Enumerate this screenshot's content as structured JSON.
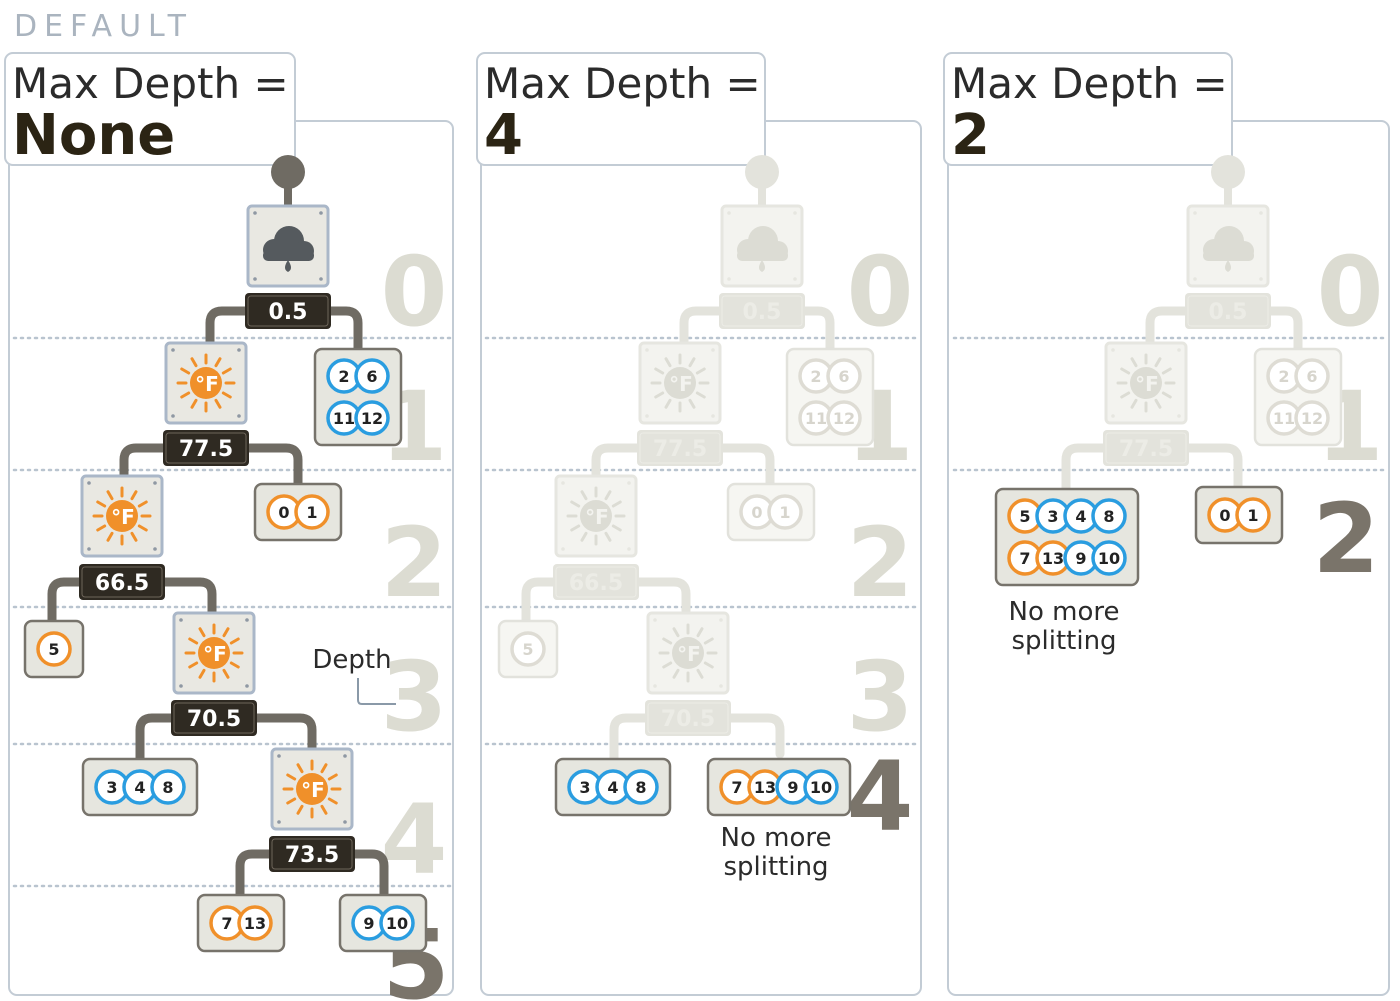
{
  "header": {
    "tag": "DEFAULT"
  },
  "colors": {
    "dark": "#2f2a22",
    "orange": "#f0902a",
    "blue": "#2a9de0",
    "grey_node": "#e6e6df",
    "frame": "#aab7c8",
    "depth_light": "#dcdcd2",
    "depth_dark": "#7a746a",
    "faded": "#e3e3dc"
  },
  "panels": [
    {
      "title_prefix": "Max Depth =",
      "title_value": "None",
      "depth_digits": [
        "0",
        "1",
        "2",
        "3",
        "4",
        "5"
      ],
      "depth_label": "Depth",
      "root_icon": "rain-cloud-icon",
      "splits": [
        {
          "threshold": "0.5",
          "icon": "rain-cloud-icon"
        },
        {
          "threshold": "77.5",
          "icon": "sun-thermometer-icon"
        },
        {
          "threshold": "66.5",
          "icon": "sun-thermometer-icon"
        },
        {
          "threshold": "70.5",
          "icon": "sun-thermometer-icon"
        },
        {
          "threshold": "73.5",
          "icon": "sun-thermometer-icon"
        }
      ],
      "leaves": [
        {
          "items": [
            {
              "id": "2",
              "c": "blue"
            },
            {
              "id": "6",
              "c": "blue"
            },
            {
              "id": "11",
              "c": "blue"
            },
            {
              "id": "12",
              "c": "blue"
            }
          ]
        },
        {
          "items": [
            {
              "id": "0",
              "c": "orange"
            },
            {
              "id": "1",
              "c": "orange"
            }
          ]
        },
        {
          "items": [
            {
              "id": "5",
              "c": "orange"
            }
          ]
        },
        {
          "items": [
            {
              "id": "3",
              "c": "blue"
            },
            {
              "id": "4",
              "c": "blue"
            },
            {
              "id": "8",
              "c": "blue"
            }
          ]
        },
        {
          "items": [
            {
              "id": "7",
              "c": "orange"
            },
            {
              "id": "13",
              "c": "orange"
            }
          ]
        },
        {
          "items": [
            {
              "id": "9",
              "c": "blue"
            },
            {
              "id": "10",
              "c": "blue"
            }
          ]
        }
      ]
    },
    {
      "title_prefix": "Max Depth =",
      "title_value": "4",
      "depth_digits": [
        "0",
        "1",
        "2",
        "3",
        "4"
      ],
      "splits": [
        {
          "threshold": "0.5"
        },
        {
          "threshold": "77.5"
        },
        {
          "threshold": "66.5"
        },
        {
          "threshold": "70.5"
        }
      ],
      "faded_leaves": [
        {
          "items": [
            "2",
            "6",
            "11",
            "12"
          ]
        },
        {
          "items": [
            "0",
            "1"
          ]
        },
        {
          "items": [
            "5"
          ]
        }
      ],
      "leaves": [
        {
          "items": [
            {
              "id": "3",
              "c": "blue"
            },
            {
              "id": "4",
              "c": "blue"
            },
            {
              "id": "8",
              "c": "blue"
            }
          ]
        },
        {
          "items": [
            {
              "id": "7",
              "c": "orange"
            },
            {
              "id": "13",
              "c": "orange"
            },
            {
              "id": "9",
              "c": "blue"
            },
            {
              "id": "10",
              "c": "blue"
            }
          ]
        }
      ],
      "note": [
        "No more",
        "splitting"
      ]
    },
    {
      "title_prefix": "Max Depth =",
      "title_value": "2",
      "depth_digits": [
        "0",
        "1",
        "2"
      ],
      "splits": [
        {
          "threshold": "0.5"
        },
        {
          "threshold": "77.5"
        }
      ],
      "faded_leaves": [
        {
          "items": [
            "2",
            "6",
            "11",
            "12"
          ]
        }
      ],
      "leaves": [
        {
          "items": [
            {
              "id": "5",
              "c": "orange"
            },
            {
              "id": "3",
              "c": "blue"
            },
            {
              "id": "4",
              "c": "blue"
            },
            {
              "id": "8",
              "c": "blue"
            },
            {
              "id": "7",
              "c": "orange"
            },
            {
              "id": "13",
              "c": "orange"
            },
            {
              "id": "9",
              "c": "blue"
            },
            {
              "id": "10",
              "c": "blue"
            }
          ]
        },
        {
          "items": [
            {
              "id": "0",
              "c": "orange"
            },
            {
              "id": "1",
              "c": "orange"
            }
          ]
        }
      ],
      "note": [
        "No more",
        "splitting"
      ]
    }
  ]
}
